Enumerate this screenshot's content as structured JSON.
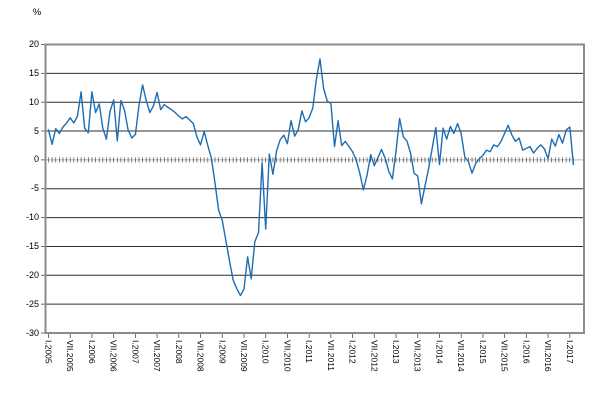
{
  "chart": {
    "unit_label": "%",
    "colors": {
      "series": "#1e6db3",
      "grid": "#2f2f2f",
      "zero_line": "#b3b3b3",
      "border": "#8c8c8c",
      "tick": "#4d4d4d"
    }
  },
  "chart_data": {
    "type": "line",
    "title": "",
    "xlabel": "",
    "ylabel": "%",
    "ylim": [
      -30,
      20
    ],
    "grid": true,
    "legend": "none",
    "x_start": "2005-01",
    "x_frequency": "monthly",
    "x_end": "2017-02",
    "y_ticks": [
      20,
      15,
      10,
      5,
      0,
      -5,
      -10,
      -15,
      -20,
      -25,
      -30
    ],
    "y_tick_labels": [
      "20",
      "15",
      "10",
      "5",
      "0",
      "-5",
      "-10",
      "-15",
      "-20",
      "-25",
      "-30"
    ],
    "x_tick_labels": [
      "I.2005",
      "VII.2005",
      "I.2006",
      "VII.2006",
      "I.2007",
      "VII.2007",
      "I.2008",
      "VII.2008",
      "I.2009",
      "VII.2009",
      "I.2010",
      "VII.2010",
      "I.2011",
      "VII.2011",
      "I.2012",
      "VII.2012",
      "I.2013",
      "VII.2013",
      "I.2014",
      "VII.2014",
      "I.2015",
      "VII.2015",
      "I.2016",
      "VII.2016",
      "I.2017"
    ],
    "months_per_x_tick": 6,
    "values": [
      5.2,
      2.7,
      5.4,
      4.6,
      5.7,
      6.4,
      7.3,
      6.4,
      7.6,
      11.8,
      5.5,
      4.7,
      11.8,
      8.2,
      9.7,
      5.5,
      3.6,
      8.4,
      10.4,
      3.3,
      10.3,
      8.6,
      5.2,
      3.8,
      4.4,
      9.5,
      13.0,
      10.3,
      8.2,
      9.4,
      11.7,
      8.7,
      9.6,
      9.1,
      8.7,
      8.2,
      7.6,
      7.1,
      7.5,
      6.9,
      6.3,
      4.0,
      2.6,
      4.9,
      2.5,
      0.3,
      -4.0,
      -8.7,
      -10.5,
      -14.0,
      -17.5,
      -20.8,
      -22.3,
      -23.5,
      -22.4,
      -16.8,
      -20.6,
      -14.2,
      -12.6,
      -0.5,
      -12.0,
      1.0,
      -2.5,
      1.6,
      3.5,
      4.3,
      2.8,
      6.8,
      4.1,
      5.3,
      8.5,
      6.6,
      7.3,
      9.0,
      14.0,
      17.5,
      12.4,
      10.2,
      9.8,
      2.3,
      6.8,
      2.5,
      3.2,
      2.3,
      1.4,
      0.0,
      -2.3,
      -5.2,
      -2.6,
      0.9,
      -1.0,
      0.4,
      1.8,
      0.3,
      -2.0,
      -3.3,
      1.5,
      7.2,
      4.0,
      3.3,
      1.2,
      -2.3,
      -2.8,
      -7.6,
      -4.5,
      -1.5,
      2.0,
      5.6,
      -0.8,
      5.5,
      3.6,
      5.8,
      4.6,
      6.3,
      4.5,
      0.5,
      -0.3,
      -2.3,
      -0.6,
      0.2,
      0.8,
      1.7,
      1.4,
      2.6,
      2.3,
      3.2,
      4.6,
      6.0,
      4.3,
      3.2,
      3.8,
      1.7,
      2.0,
      2.3,
      1.2,
      2.0,
      2.6,
      1.9,
      0.2,
      3.6,
      2.4,
      4.4,
      2.9,
      5.2,
      5.7,
      -0.8
    ]
  }
}
